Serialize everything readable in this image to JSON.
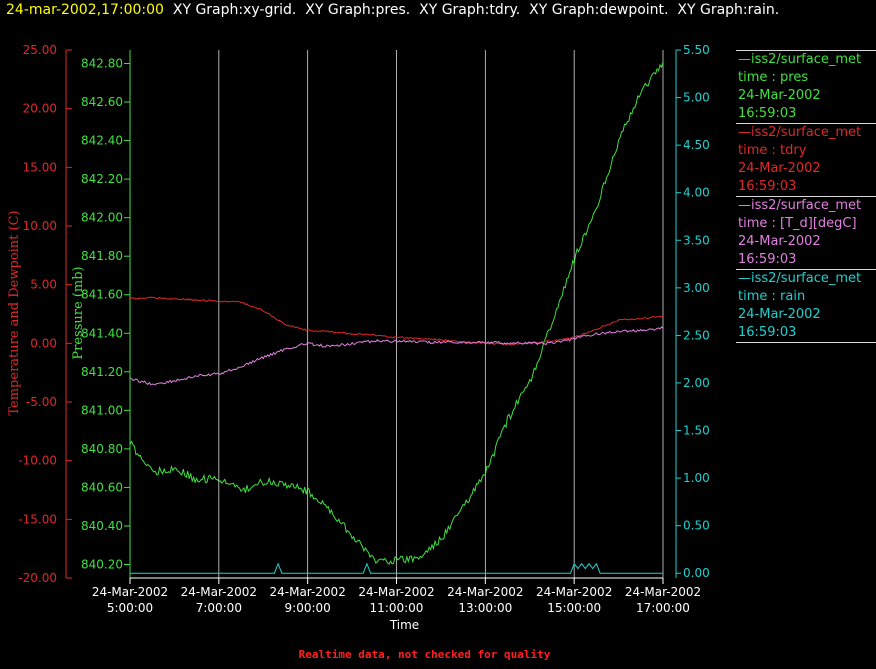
{
  "header": {
    "timestamp": "24-mar-2002,17:00:00",
    "graphs": "  XY Graph:xy-grid.  XY Graph:pres.  XY Graph:tdry.  XY Graph:dewpoint.  XY Graph:rain."
  },
  "footer": "Realtime data, not checked for quality",
  "colors": {
    "pres": "#40e040",
    "tdry": "#e02828",
    "dewpoint": "#e080e0",
    "rain": "#20d0d0",
    "grid": "#ffffff"
  },
  "legend": [
    {
      "line1": "—iss2/surface_met",
      "line2": "time : pres",
      "line3": "24-Mar-2002",
      "line4": "16:59:03",
      "color": "#40e040"
    },
    {
      "line1": "—iss2/surface_met",
      "line2": "time : tdry",
      "line3": "24-Mar-2002",
      "line4": "16:59:03",
      "color": "#e02828"
    },
    {
      "line1": "—iss2/surface_met",
      "line2": "time : [T_d][degC]",
      "line3": "24-Mar-2002",
      "line4": "16:59:03",
      "color": "#e080e0"
    },
    {
      "line1": "—iss2/surface_met",
      "line2": "time : rain",
      "line3": "24-Mar-2002",
      "line4": "16:59:03",
      "color": "#20d0d0"
    }
  ],
  "chart_data": {
    "type": "line",
    "xlabel": "Time",
    "x_ticks": [
      [
        "24-Mar-2002",
        "5:00:00"
      ],
      [
        "24-Mar-2002",
        "7:00:00"
      ],
      [
        "24-Mar-2002",
        "9:00:00"
      ],
      [
        "24-Mar-2002",
        "11:00:00"
      ],
      [
        "24-Mar-2002",
        "13:00:00"
      ],
      [
        "24-Mar-2002",
        "15:00:00"
      ],
      [
        "24-Mar-2002",
        "17:00:00"
      ]
    ],
    "xlim": [
      "2002-03-24 05:00",
      "2002-03-24 17:00"
    ],
    "grid": "vertical",
    "axes": {
      "temperature": {
        "label": "Temperature and Dewpoint (C)",
        "ylim": [
          -20,
          25
        ],
        "ticks": [
          "25.00",
          "20.00",
          "15.00",
          "10.00",
          "5.00",
          "0.00",
          "-5.00",
          "-10.00",
          "-15.00",
          "-20.00"
        ]
      },
      "pressure": {
        "label": "Pressure (mb)",
        "ylim": [
          840.13,
          842.87
        ],
        "ticks": [
          "842.80",
          "842.60",
          "842.40",
          "842.20",
          "842.00",
          "841.80",
          "841.60",
          "841.40",
          "841.20",
          "841.00",
          "840.80",
          "840.60",
          "840.40",
          "840.20"
        ]
      },
      "rain": {
        "label": "",
        "ylim": [
          -0.05,
          5.5
        ],
        "ticks": [
          "5.50",
          "5.00",
          "4.50",
          "4.00",
          "3.50",
          "3.00",
          "2.50",
          "2.00",
          "1.50",
          "1.00",
          "0.50",
          "0.00"
        ]
      }
    },
    "series": [
      {
        "key": "pres",
        "axis": "pressure",
        "x": [
          "05:00",
          "05:30",
          "06:00",
          "06:30",
          "07:00",
          "07:30",
          "08:00",
          "08:30",
          "09:00",
          "09:30",
          "10:00",
          "10:30",
          "11:00",
          "11:30",
          "12:00",
          "12:30",
          "13:00",
          "13:30",
          "14:00",
          "14:30",
          "15:00",
          "15:30",
          "16:00",
          "16:30",
          "17:00"
        ],
        "values": [
          840.83,
          840.68,
          840.7,
          840.64,
          840.65,
          840.58,
          840.63,
          840.62,
          840.58,
          840.48,
          840.35,
          840.22,
          840.22,
          840.23,
          840.33,
          840.5,
          840.67,
          840.95,
          841.15,
          841.45,
          841.78,
          842.05,
          842.4,
          842.65,
          842.8
        ]
      },
      {
        "key": "tdry",
        "axis": "temperature",
        "x": [
          "05:00",
          "05:30",
          "06:00",
          "06:30",
          "07:00",
          "07:30",
          "08:00",
          "08:30",
          "09:00",
          "09:30",
          "10:00",
          "10:30",
          "11:00",
          "11:30",
          "12:00",
          "12:30",
          "13:00",
          "13:30",
          "14:00",
          "14:30",
          "15:00",
          "15:30",
          "16:00",
          "16:30",
          "17:00"
        ],
        "values": [
          3.8,
          3.9,
          3.8,
          3.7,
          3.6,
          3.5,
          2.8,
          1.6,
          1.1,
          1.0,
          0.8,
          0.7,
          0.5,
          0.4,
          0.3,
          0.1,
          0.0,
          -0.1,
          0.0,
          0.2,
          0.5,
          1.2,
          2.0,
          2.1,
          2.3
        ]
      },
      {
        "key": "dewpoint",
        "axis": "temperature",
        "x": [
          "05:00",
          "05:30",
          "06:00",
          "06:30",
          "07:00",
          "07:30",
          "08:00",
          "08:30",
          "09:00",
          "09:30",
          "10:00",
          "10:30",
          "11:00",
          "11:30",
          "12:00",
          "12:30",
          "13:00",
          "13:30",
          "14:00",
          "14:30",
          "15:00",
          "15:30",
          "16:00",
          "16:30",
          "17:00"
        ],
        "values": [
          -3.0,
          -3.5,
          -3.2,
          -2.8,
          -2.6,
          -2.0,
          -1.2,
          -0.5,
          0.0,
          -0.3,
          0.0,
          0.2,
          0.2,
          0.1,
          0.1,
          0.1,
          0.1,
          0.0,
          0.0,
          0.0,
          0.4,
          0.8,
          1.0,
          1.1,
          1.3
        ]
      },
      {
        "key": "rain",
        "axis": "rain",
        "x": [
          "05:00",
          "08:15",
          "08:20",
          "08:25",
          "10:15",
          "10:20",
          "10:25",
          "14:55",
          "15:00",
          "15:05",
          "15:10",
          "15:15",
          "15:20",
          "15:25",
          "15:30",
          "15:35",
          "17:00"
        ],
        "values": [
          0,
          0,
          0.1,
          0,
          0,
          0.1,
          0,
          0,
          0.1,
          0.05,
          0.1,
          0.05,
          0.1,
          0.05,
          0.1,
          0,
          0
        ]
      }
    ]
  }
}
